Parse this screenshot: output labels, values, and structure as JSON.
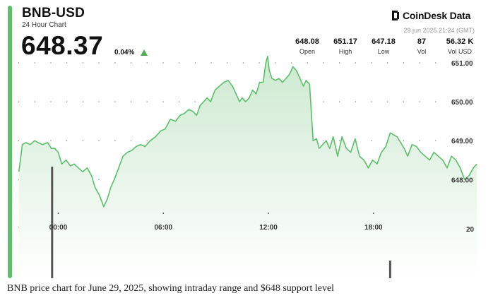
{
  "header": {
    "ticker": "BNB-USD",
    "subtitle": "24 Hour Chart",
    "price": "648.37",
    "change": "0.04%",
    "change_color": "#4caf50",
    "brand": "CoinDesk Data",
    "timestamp": "29 jun 2025 21:24 (GMT)"
  },
  "stats": [
    {
      "value": "648.08",
      "label": "Open"
    },
    {
      "value": "651.17",
      "label": "High"
    },
    {
      "value": "647.18",
      "label": "Low"
    },
    {
      "value": "87",
      "label": "Vol"
    },
    {
      "value": "56.32 K",
      "label": "Vol USD"
    }
  ],
  "caption": "BNB price chart for June 29, 2025, showing intraday range and $648 support level",
  "chart_data": {
    "type": "area",
    "ylim": [
      645.5,
      651.2
    ],
    "xlim": [
      -2.6,
      24.5
    ],
    "y_ticks": [
      651.0,
      650.0,
      649.0,
      648.0
    ],
    "y_tick_labels": [
      "651.00",
      "650.00",
      "649.00",
      "648.00"
    ],
    "x_ticks": [
      0,
      6,
      12,
      18
    ],
    "x_tick_labels": [
      "00:00",
      "06:00",
      "12:00",
      "18:00"
    ],
    "volume_axis_label": "20",
    "grid": "dotted",
    "line_color": "#5cbf6b",
    "fill_color": "#cde9d0",
    "series": [
      {
        "x": [
          -2.25,
          -2.05,
          -1.85,
          -1.6,
          -1.35,
          -1.15,
          -0.9,
          -0.6,
          -0.4,
          -0.2,
          0,
          0.2,
          0.45,
          0.7,
          0.9,
          1.15,
          1.4,
          1.65,
          1.9,
          2.1,
          2.35,
          2.6,
          2.8,
          3.0,
          3.2,
          3.45,
          3.7,
          3.95,
          4.2,
          4.45,
          4.7,
          4.95,
          5.25,
          5.55,
          5.85,
          6.1,
          6.4,
          6.7,
          6.95,
          7.2,
          7.45,
          7.7,
          7.9,
          8.1,
          8.3,
          8.5,
          8.7,
          8.95,
          9.2,
          9.45,
          9.7,
          9.95,
          10.15,
          10.35,
          10.5,
          10.7,
          10.9,
          11.1,
          11.3,
          11.5,
          11.7,
          11.85,
          11.95,
          12.05,
          12.2,
          12.4,
          12.6,
          12.8,
          13.0,
          13.2,
          13.4,
          13.6,
          13.8,
          14.0,
          14.15,
          14.35,
          14.55,
          14.75,
          14.9,
          15.1,
          15.3,
          15.5,
          15.7,
          15.95,
          16.2,
          16.45,
          16.7,
          16.95,
          17.2,
          17.45,
          17.7,
          17.95,
          18.2,
          18.45,
          18.7,
          18.95,
          19.15,
          19.35,
          19.55,
          19.75,
          19.95,
          20.2,
          20.45,
          20.7,
          20.95,
          21.2,
          21.45,
          21.7,
          21.95,
          22.2,
          22.45,
          22.7,
          22.95,
          23.2,
          23.45,
          23.7,
          23.9
        ],
        "y": [
          648.2,
          648.9,
          648.95,
          648.9,
          649.0,
          648.95,
          648.9,
          648.95,
          648.8,
          648.8,
          648.7,
          648.4,
          648.5,
          648.35,
          648.4,
          648.3,
          648.2,
          648.3,
          648.1,
          647.8,
          647.6,
          647.3,
          647.5,
          647.8,
          648.0,
          648.3,
          648.6,
          648.7,
          648.75,
          648.85,
          648.9,
          648.85,
          649.0,
          649.1,
          649.25,
          649.3,
          649.55,
          649.5,
          649.65,
          649.7,
          649.8,
          649.75,
          649.65,
          649.9,
          650.0,
          650.1,
          650.0,
          650.3,
          650.4,
          650.5,
          650.55,
          650.4,
          650.2,
          650.0,
          650.1,
          650.0,
          650.1,
          650.3,
          650.2,
          650.5,
          650.5,
          651.0,
          651.17,
          650.8,
          650.6,
          650.55,
          650.6,
          650.5,
          650.6,
          650.7,
          650.9,
          650.8,
          650.6,
          650.4,
          650.55,
          650.45,
          649.0,
          649.05,
          648.8,
          648.9,
          649.0,
          648.8,
          649.1,
          648.6,
          649.1,
          648.8,
          648.7,
          649.05,
          648.6,
          648.5,
          648.3,
          648.5,
          648.4,
          648.7,
          648.85,
          649.2,
          649.15,
          649.1,
          648.95,
          648.8,
          648.6,
          648.9,
          648.85,
          648.7,
          648.6,
          648.5,
          648.7,
          648.6,
          648.5,
          648.3,
          648.6,
          648.5,
          648.3,
          648.0,
          648.1,
          648.3,
          648.4
        ]
      }
    ],
    "volume_bars": [
      {
        "x": -0.35,
        "value": 19
      },
      {
        "x": 18.95,
        "value": 3
      }
    ]
  }
}
